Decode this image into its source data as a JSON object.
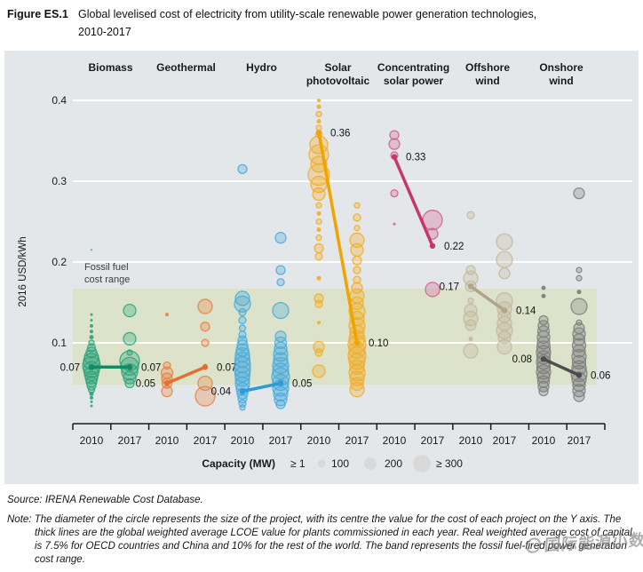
{
  "header": {
    "figure_label": "Figure ES.1",
    "title_line1": "Global levelised cost of electricity from utility-scale renewable power generation technologies,",
    "title_line2": "2010-2017"
  },
  "chart_data": {
    "type": "bubble-scatter",
    "ylabel": "2016 USD/kWh",
    "yticks": [
      "0.4",
      "0.3",
      "0.2",
      "0.1"
    ],
    "ylim": [
      0,
      0.42
    ],
    "years": [
      "2010",
      "2017"
    ],
    "band": {
      "label_line1": "Fossil fuel",
      "label_line2": "cost range",
      "from": 0.048,
      "to": 0.167
    },
    "legend": {
      "title": "Capacity (MW)",
      "items": [
        {
          "label": "≥ 1",
          "r": 0
        },
        {
          "label": "100",
          "r": 4.5
        },
        {
          "label": "200",
          "r": 7
        },
        {
          "label": "≥ 300",
          "r": 10
        }
      ]
    },
    "technologies": [
      {
        "name": [
          "Biomass"
        ],
        "color": "#2aa37a",
        "line_color": "#138a63",
        "avg_2010": 0.07,
        "avg_2017": 0.07,
        "label_2010": "0.07",
        "label_2017": "0.07",
        "side_2010": "left",
        "side_2017": "right",
        "bubbles_2010": [
          [
            0.215,
            1
          ],
          [
            0.135,
            1.5
          ],
          [
            0.128,
            1.5
          ],
          [
            0.121,
            2
          ],
          [
            0.114,
            2
          ],
          [
            0.107,
            2.5
          ],
          [
            0.1,
            3
          ],
          [
            0.094,
            4.5
          ],
          [
            0.088,
            6
          ],
          [
            0.082,
            8
          ],
          [
            0.077,
            9
          ],
          [
            0.072,
            10
          ],
          [
            0.067,
            9
          ],
          [
            0.062,
            8
          ],
          [
            0.057,
            7
          ],
          [
            0.052,
            6
          ],
          [
            0.047,
            5
          ],
          [
            0.042,
            3.5
          ],
          [
            0.037,
            2.5
          ],
          [
            0.032,
            2
          ],
          [
            0.027,
            1.5
          ],
          [
            0.022,
            1.5
          ]
        ],
        "bubbles_2017": [
          [
            0.14,
            7
          ],
          [
            0.105,
            7
          ],
          [
            0.088,
            3
          ],
          [
            0.078,
            11
          ],
          [
            0.071,
            10
          ],
          [
            0.064,
            9
          ],
          [
            0.057,
            7
          ],
          [
            0.05,
            5
          ]
        ]
      },
      {
        "name": [
          "Geothermal"
        ],
        "color": "#e8803f",
        "line_color": "#e3702d",
        "avg_2010": 0.05,
        "avg_2017": 0.07,
        "label_2010": "0.05",
        "label_2017": "0.07",
        "side_2010": "left",
        "side_2017": "right",
        "bubbles_2010": [
          [
            0.135,
            2
          ],
          [
            0.072,
            4
          ],
          [
            0.063,
            6.5
          ],
          [
            0.056,
            6
          ],
          [
            0.05,
            5.5
          ],
          [
            0.04,
            6
          ]
        ],
        "bubbles_2017": [
          [
            0.145,
            8
          ],
          [
            0.12,
            5
          ],
          [
            0.1,
            4
          ],
          [
            0.072,
            2
          ],
          [
            0.05,
            8
          ],
          [
            0.034,
            11
          ]
        ]
      },
      {
        "name": [
          "Hydro"
        ],
        "color": "#45aadd",
        "line_color": "#2b9cd8",
        "avg_2010": 0.04,
        "avg_2017": 0.05,
        "label_2010": "0.04",
        "label_2017": "0.05",
        "side_2010": "left",
        "side_2017": "right",
        "bubbles_2010": [
          [
            0.315,
            5
          ],
          [
            0.155,
            8
          ],
          [
            0.148,
            9
          ],
          [
            0.138,
            4
          ],
          [
            0.128,
            4
          ],
          [
            0.118,
            3.5
          ],
          [
            0.11,
            4
          ],
          [
            0.103,
            5
          ],
          [
            0.097,
            6
          ],
          [
            0.091,
            7
          ],
          [
            0.085,
            8
          ],
          [
            0.079,
            8.5
          ],
          [
            0.073,
            9
          ],
          [
            0.067,
            9
          ],
          [
            0.061,
            8.5
          ],
          [
            0.055,
            8
          ],
          [
            0.049,
            8
          ],
          [
            0.043,
            7
          ],
          [
            0.037,
            6
          ],
          [
            0.031,
            5
          ],
          [
            0.025,
            4
          ],
          [
            0.02,
            3
          ]
        ],
        "bubbles_2017": [
          [
            0.23,
            6
          ],
          [
            0.19,
            5
          ],
          [
            0.175,
            4
          ],
          [
            0.14,
            9
          ],
          [
            0.108,
            6
          ],
          [
            0.1,
            6.5
          ],
          [
            0.093,
            7
          ],
          [
            0.086,
            8
          ],
          [
            0.079,
            8
          ],
          [
            0.072,
            9
          ],
          [
            0.065,
            9
          ],
          [
            0.058,
            10
          ],
          [
            0.051,
            9
          ],
          [
            0.044,
            9
          ],
          [
            0.037,
            8
          ],
          [
            0.03,
            7
          ],
          [
            0.024,
            5
          ]
        ]
      },
      {
        "name": [
          "Solar",
          "photovoltaic"
        ],
        "color": "#f3ac25",
        "line_color": "#f0a400",
        "avg_2010": 0.36,
        "avg_2017": 0.1,
        "label_2010": "0.36",
        "label_2017": "0.10",
        "side_2010": "right",
        "side_2017": "right",
        "bubbles_2010": [
          [
            0.4,
            2
          ],
          [
            0.392,
            2.5
          ],
          [
            0.383,
            3
          ],
          [
            0.374,
            2.5
          ],
          [
            0.366,
            3
          ],
          [
            0.358,
            3.5
          ],
          [
            0.345,
            10
          ],
          [
            0.333,
            11
          ],
          [
            0.321,
            9
          ],
          [
            0.308,
            12
          ],
          [
            0.296,
            9
          ],
          [
            0.284,
            7
          ],
          [
            0.27,
            3
          ],
          [
            0.26,
            2.5
          ],
          [
            0.25,
            3
          ],
          [
            0.24,
            2.5
          ],
          [
            0.23,
            3
          ],
          [
            0.217,
            5
          ],
          [
            0.207,
            4
          ],
          [
            0.18,
            2.5
          ],
          [
            0.155,
            5
          ],
          [
            0.148,
            4
          ],
          [
            0.125,
            2
          ],
          [
            0.095,
            6
          ],
          [
            0.088,
            4
          ],
          [
            0.065,
            7
          ]
        ],
        "bubbles_2017": [
          [
            0.27,
            3
          ],
          [
            0.255,
            4
          ],
          [
            0.242,
            3
          ],
          [
            0.227,
            8
          ],
          [
            0.215,
            7
          ],
          [
            0.202,
            5
          ],
          [
            0.19,
            4
          ],
          [
            0.178,
            4
          ],
          [
            0.168,
            6
          ],
          [
            0.158,
            8
          ],
          [
            0.149,
            7
          ],
          [
            0.139,
            9
          ],
          [
            0.13,
            8
          ],
          [
            0.121,
            9
          ],
          [
            0.113,
            8
          ],
          [
            0.105,
            9
          ],
          [
            0.098,
            10
          ],
          [
            0.091,
            9
          ],
          [
            0.084,
            10
          ],
          [
            0.077,
            9
          ],
          [
            0.07,
            8
          ],
          [
            0.063,
            9
          ],
          [
            0.056,
            8
          ],
          [
            0.049,
            7
          ],
          [
            0.042,
            8
          ]
        ]
      },
      {
        "name": [
          "Concentrating",
          "solar power"
        ],
        "color": "#cf5d92",
        "line_color": "#c5386f",
        "avg_2010": 0.33,
        "avg_2017": 0.22,
        "label_2010": "0.33",
        "label_2017": "0.22",
        "side_2010": "right",
        "side_2017": "right",
        "bubbles_2010": [
          [
            0.357,
            5
          ],
          [
            0.346,
            6
          ],
          [
            0.332,
            4
          ],
          [
            0.285,
            4
          ],
          [
            0.247,
            1.5
          ]
        ],
        "bubbles_2017": [
          [
            0.252,
            11
          ],
          [
            0.235,
            6
          ],
          [
            0.166,
            8
          ]
        ]
      },
      {
        "name": [
          "Offshore",
          "wind"
        ],
        "color": "#c3b79d",
        "line_color": "#b0a489",
        "avg_2010": 0.17,
        "avg_2017": 0.14,
        "label_2010": "0.17",
        "label_2017": "0.14",
        "side_2010": "left",
        "side_2017": "right",
        "bubbles_2010": [
          [
            0.258,
            4
          ],
          [
            0.19,
            5
          ],
          [
            0.18,
            8
          ],
          [
            0.17,
            6
          ],
          [
            0.152,
            3
          ],
          [
            0.14,
            7
          ],
          [
            0.13,
            8
          ],
          [
            0.122,
            6
          ],
          [
            0.105,
            2.5
          ],
          [
            0.09,
            8
          ]
        ],
        "bubbles_2017": [
          [
            0.225,
            9
          ],
          [
            0.203,
            9
          ],
          [
            0.186,
            6
          ],
          [
            0.152,
            9
          ],
          [
            0.142,
            8
          ],
          [
            0.133,
            7
          ],
          [
            0.124,
            8
          ],
          [
            0.115,
            9
          ],
          [
            0.107,
            7
          ],
          [
            0.095,
            8
          ]
        ]
      },
      {
        "name": [
          "Onshore",
          "wind"
        ],
        "color": "#7c7c7c",
        "line_color": "#4d4d4d",
        "avg_2010": 0.08,
        "avg_2017": 0.06,
        "label_2010": "0.08",
        "label_2017": "0.06",
        "side_2010": "left",
        "side_2017": "right",
        "bubbles_2010": [
          [
            0.168,
            2.5
          ],
          [
            0.158,
            2.5
          ],
          [
            0.128,
            5
          ],
          [
            0.121,
            6
          ],
          [
            0.114,
            6.5
          ],
          [
            0.107,
            7
          ],
          [
            0.1,
            7
          ],
          [
            0.094,
            7.5
          ],
          [
            0.088,
            8
          ],
          [
            0.082,
            7.5
          ],
          [
            0.076,
            8
          ],
          [
            0.07,
            7.5
          ],
          [
            0.064,
            8
          ],
          [
            0.058,
            7
          ],
          [
            0.052,
            6.5
          ],
          [
            0.046,
            6
          ],
          [
            0.04,
            5
          ]
        ],
        "bubbles_2017": [
          [
            0.285,
            6
          ],
          [
            0.19,
            3
          ],
          [
            0.18,
            3
          ],
          [
            0.163,
            2.5
          ],
          [
            0.145,
            9
          ],
          [
            0.125,
            3
          ],
          [
            0.118,
            6
          ],
          [
            0.111,
            7
          ],
          [
            0.104,
            6.5
          ],
          [
            0.097,
            7.5
          ],
          [
            0.09,
            7
          ],
          [
            0.083,
            8
          ],
          [
            0.076,
            7.5
          ],
          [
            0.069,
            8
          ],
          [
            0.062,
            9
          ],
          [
            0.055,
            8
          ],
          [
            0.048,
            7
          ],
          [
            0.041,
            7
          ],
          [
            0.034,
            6
          ]
        ]
      }
    ]
  },
  "footer": {
    "source_label": "Source:",
    "source_text": "IRENA Renewable Cost Database.",
    "note_label": "Note:",
    "note_text": "The diameter of the circle represents the size of the project, with its centre the value for the cost of each project on the Y axis. The thick lines are the global weighted average LCOE value for plants commissioned in each year. Real weighted average cost of capital is 7.5% for OECD countries and China and 10% for the rest of the world. The band represents the fossil fuel-fired power generation cost range."
  },
  "watermark": {
    "text": "国际能源小数据"
  }
}
